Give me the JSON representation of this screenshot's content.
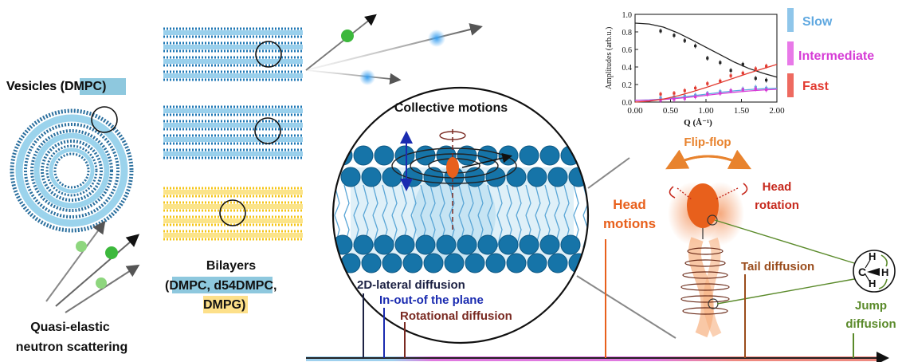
{
  "labels": {
    "vesicles_prefix": "Vesicles (",
    "vesicles_lipid": "DMPC",
    "vesicles_suffix": ")",
    "bilayers_title": "Bilayers",
    "bilayers_open": "(",
    "bilayers_lipids_a": "DMPC, d54DMPC",
    "bilayers_comma": ",",
    "bilayers_lipids_b": "DMPG",
    "bilayers_close": ")",
    "qens_line1": "Quasi-elastic",
    "qens_line2": "neutron scattering",
    "collective": "Collective motions",
    "lateral": "2D-lateral diffusion",
    "inout": "In-out-of the plane",
    "rotational": "Rotational diffusion",
    "head_motions_1": "Head",
    "head_motions_2": "motions",
    "flipflop": "Flip-flop",
    "head_rotation_1": "Head",
    "head_rotation_2": "rotation",
    "tail_diffusion": "Tail diffusion",
    "jump_1": "Jump",
    "jump_2": "diffusion",
    "ch_c": "C",
    "ch_h1": "H",
    "ch_h2": "H",
    "ch_h3": "H"
  },
  "colors": {
    "dmpc_bg": "#8ec8de",
    "dmpg_bg": "#fde08a",
    "lipid_blue": "#1f77b4",
    "lipid_yellow": "#f5c518",
    "slow": "#8fc6ea",
    "intermediate": "#e64de6",
    "fast": "#e6483c",
    "lateral": "#1d2244",
    "inout": "#1a2bb0",
    "rotational": "#7a2a22",
    "head_motions": "#e8601c",
    "flipflop": "#e8832e",
    "head_rotation": "#c6281c",
    "tail_diffusion": "#9a4c1c",
    "jump": "#5a8a2a"
  },
  "chart_data": {
    "type": "scatter",
    "xlabel": "Q (Å⁻¹)",
    "ylabel": "Amplitudes (arb.u.)",
    "xlim": [
      0.0,
      2.0
    ],
    "ylim": [
      0.0,
      1.0
    ],
    "xticks": [
      "0.00",
      "0.50",
      "1.00",
      "1.50",
      "2.00"
    ],
    "yticks": [
      "0.0",
      "0.2",
      "0.4",
      "0.6",
      "0.8",
      "1.0"
    ],
    "legend_position": "right",
    "series": [
      {
        "name": "",
        "color": "#222222",
        "x": [
          0.36,
          0.55,
          0.7,
          0.85,
          1.02,
          1.2,
          1.35,
          1.52,
          1.7,
          1.85
        ],
        "y": [
          0.81,
          0.76,
          0.7,
          0.64,
          0.5,
          0.45,
          0.36,
          0.43,
          0.27,
          0.25
        ],
        "fit": [
          0.9,
          0.89,
          0.855,
          0.79,
          0.71,
          0.625,
          0.54,
          0.455,
          0.385,
          0.33,
          0.285
        ]
      },
      {
        "name": "Slow",
        "color": "#5fa8e0",
        "x": [
          0.36,
          0.55,
          0.7,
          0.85,
          1.02,
          1.2,
          1.35,
          1.52,
          1.7,
          1.85
        ],
        "y": [
          0.05,
          0.06,
          0.07,
          0.08,
          0.1,
          0.12,
          0.13,
          0.15,
          0.17,
          0.16
        ],
        "fit": [
          0.02,
          0.025,
          0.035,
          0.05,
          0.07,
          0.09,
          0.11,
          0.128,
          0.142,
          0.152,
          0.158
        ]
      },
      {
        "name": "Intermediate",
        "color": "#d63cd6",
        "x": [
          0.36,
          0.55,
          0.7,
          0.85,
          1.02,
          1.2,
          1.35,
          1.52,
          1.7,
          1.85
        ],
        "y": [
          0.02,
          0.03,
          0.04,
          0.06,
          0.09,
          0.1,
          0.13,
          0.14,
          0.15,
          0.14
        ],
        "fit": [
          0.02,
          0.022,
          0.03,
          0.042,
          0.058,
          0.076,
          0.095,
          0.112,
          0.126,
          0.137,
          0.145
        ]
      },
      {
        "name": "Fast",
        "color": "#e23a30",
        "x": [
          0.36,
          0.55,
          0.7,
          0.85,
          1.02,
          1.2,
          1.35,
          1.52,
          1.7,
          1.85
        ],
        "y": [
          0.09,
          0.1,
          0.13,
          0.16,
          0.21,
          0.24,
          0.3,
          0.33,
          0.38,
          0.41
        ],
        "fit": [
          0.0,
          0.01,
          0.035,
          0.07,
          0.115,
          0.165,
          0.22,
          0.275,
          0.33,
          0.38,
          0.43
        ]
      }
    ]
  }
}
